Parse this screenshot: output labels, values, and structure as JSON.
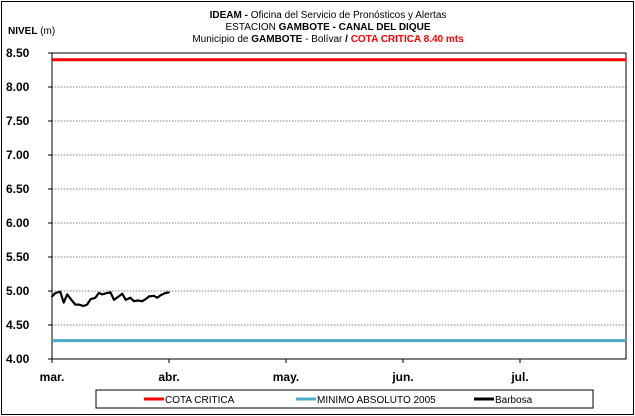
{
  "chart_data": {
    "type": "line",
    "title": {
      "line1_bold": "IDEAM -",
      "line1_rest": " Oficina del Servicio de Pronósticos y Alertas",
      "line2_pre": "ESTACION ",
      "line2_bold": "GAMBOTE - CANAL DEL DIQUE",
      "line3_pre": "Municipio de ",
      "line3_bold": "GAMBOTE",
      "line3_mid": " - Bolívar ",
      "line3_slash": "/",
      "line3_red": " COTA CRITICA 8.40 mts"
    },
    "ylabel_bold": "NIVEL",
    "ylabel_unit": " (m)",
    "ylim": [
      4.0,
      8.5
    ],
    "yticks": [
      "4.00",
      "4.50",
      "5.00",
      "5.50",
      "6.00",
      "6.50",
      "7.00",
      "7.50",
      "8.00",
      "8.50"
    ],
    "xticks": [
      "mar.",
      "abr.",
      "may.",
      "jun.",
      "jul."
    ],
    "grid": true,
    "legend_position": "bottom",
    "series": [
      {
        "name": "COTA CRITICA",
        "color": "#ff0000",
        "kind": "hline",
        "value": 8.4
      },
      {
        "name": "MINIMO ABSOLUTO 2005",
        "color": "#4bacc6",
        "kind": "hline",
        "value": 4.27
      },
      {
        "name": "Barbosa",
        "color": "#000000",
        "kind": "line",
        "x_month_offset": [
          0.0,
          0.03,
          0.07,
          0.1,
          0.13,
          0.17,
          0.2,
          0.23,
          0.27,
          0.3,
          0.33,
          0.37,
          0.4,
          0.43,
          0.47,
          0.5,
          0.53,
          0.57,
          0.6,
          0.63,
          0.67,
          0.7,
          0.73,
          0.77,
          0.8,
          0.83,
          0.87,
          0.9,
          0.93,
          0.97,
          1.0
        ],
        "y": [
          4.92,
          4.97,
          4.99,
          4.83,
          4.95,
          4.86,
          4.8,
          4.8,
          4.78,
          4.8,
          4.88,
          4.9,
          4.97,
          4.95,
          4.97,
          4.98,
          4.87,
          4.92,
          4.96,
          4.87,
          4.9,
          4.85,
          4.86,
          4.85,
          4.88,
          4.92,
          4.93,
          4.9,
          4.94,
          4.97,
          4.98
        ]
      }
    ]
  }
}
